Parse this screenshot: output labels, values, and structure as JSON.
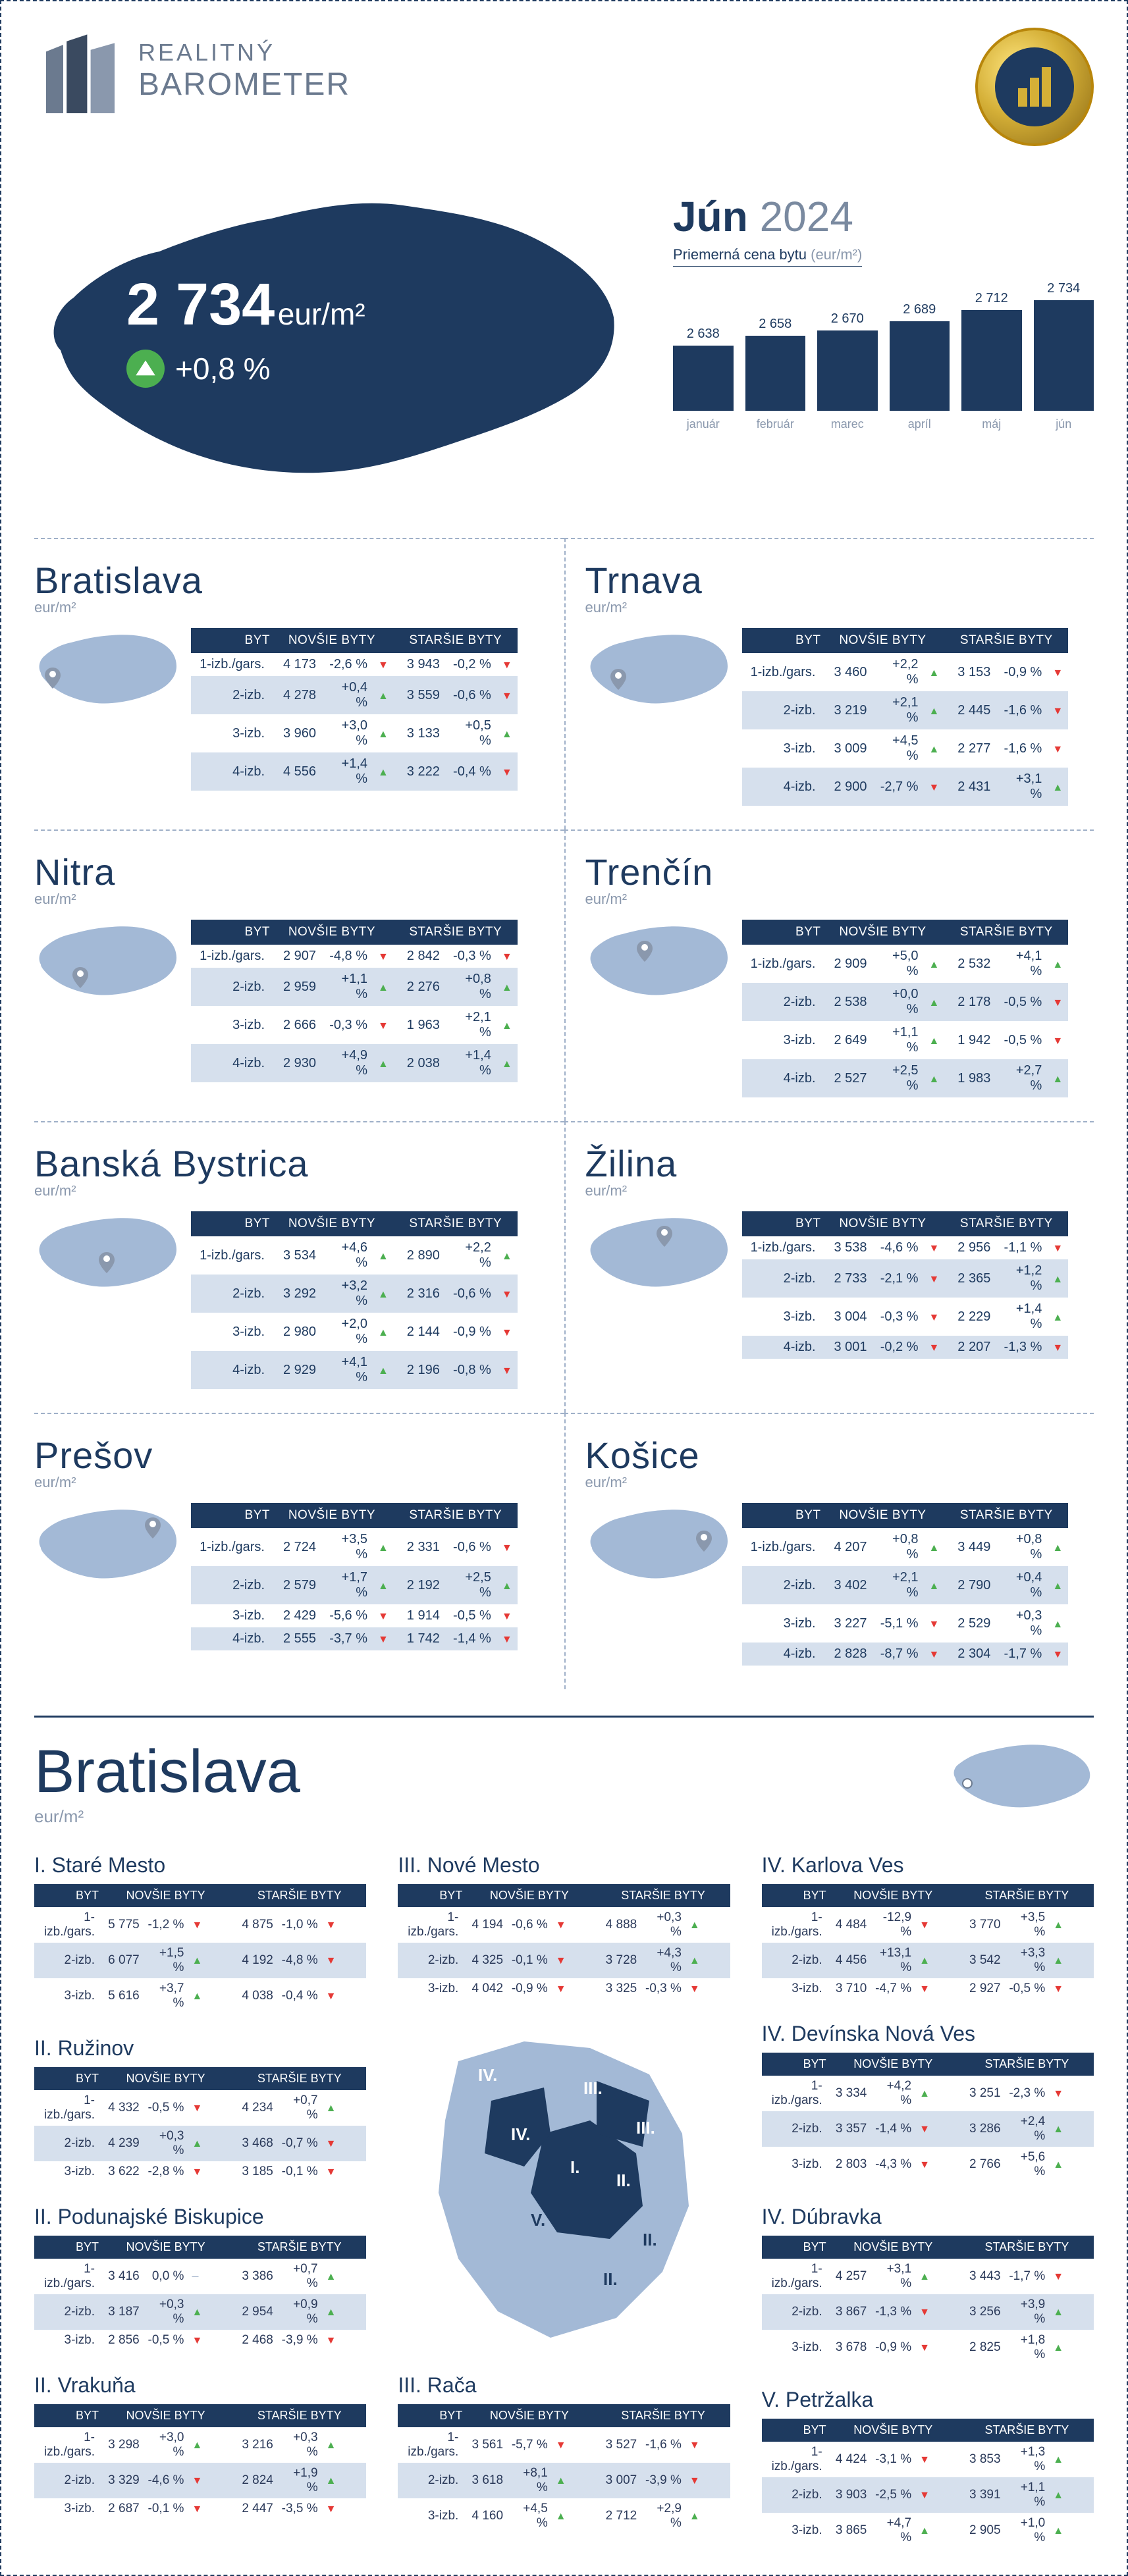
{
  "brand": {
    "line1": "REALITNÝ",
    "line2": "BAROMETER"
  },
  "period": {
    "month": "Jún",
    "year": "2024"
  },
  "avg_label": "Priemerná cena bytu",
  "avg_unit": "(eur/m²)",
  "hero": {
    "price": "2 734",
    "unit": "eur/m²",
    "delta": "+0,8 %",
    "direction": "up"
  },
  "chart": {
    "type": "bar",
    "ylim": [
      2500,
      2750
    ],
    "bars": [
      {
        "label": "január",
        "value": 2638,
        "display": "2 638"
      },
      {
        "label": "február",
        "value": 2658,
        "display": "2 658"
      },
      {
        "label": "marec",
        "value": 2670,
        "display": "2 670"
      },
      {
        "label": "apríl",
        "value": 2689,
        "display": "2 689"
      },
      {
        "label": "máj",
        "value": 2712,
        "display": "2 712"
      },
      {
        "label": "jún",
        "value": 2734,
        "display": "2 734"
      }
    ],
    "bar_color": "#1e3a5f",
    "bg_color": "#ffffff"
  },
  "table_headers": {
    "type": "BYT",
    "new": "NOVŠIE BYTY",
    "old": "STARŠIE BYTY"
  },
  "row_labels": [
    "1-izb./gars.",
    "2-izb.",
    "3-izb.",
    "4-izb."
  ],
  "row_labels_3": [
    "1-izb./gars.",
    "2-izb.",
    "3-izb."
  ],
  "unit_label": "eur/m²",
  "colors": {
    "dark": "#1e3a5f",
    "light_map": "#a3b9d6",
    "alt_row": "#d6e0ed",
    "text_muted": "#8a98ad",
    "green": "#4caf50",
    "red": "#e53935"
  },
  "regions": [
    {
      "name": "Bratislava",
      "rows": [
        {
          "n_price": "4 173",
          "n_pct": "-2,6 %",
          "n_dir": "dn",
          "o_price": "3 943",
          "o_pct": "-0,2 %",
          "o_dir": "dn"
        },
        {
          "n_price": "4 278",
          "n_pct": "+0,4 %",
          "n_dir": "up",
          "o_price": "3 559",
          "o_pct": "-0,6 %",
          "o_dir": "dn"
        },
        {
          "n_price": "3 960",
          "n_pct": "+3,0 %",
          "n_dir": "up",
          "o_price": "3 133",
          "o_pct": "+0,5 %",
          "o_dir": "up"
        },
        {
          "n_price": "4 556",
          "n_pct": "+1,4 %",
          "n_dir": "up",
          "o_price": "3 222",
          "o_pct": "-0,4 %",
          "o_dir": "dn"
        }
      ]
    },
    {
      "name": "Trnava",
      "rows": [
        {
          "n_price": "3 460",
          "n_pct": "+2,2 %",
          "n_dir": "up",
          "o_price": "3 153",
          "o_pct": "-0,9 %",
          "o_dir": "dn"
        },
        {
          "n_price": "3 219",
          "n_pct": "+2,1 %",
          "n_dir": "up",
          "o_price": "2 445",
          "o_pct": "-1,6 %",
          "o_dir": "dn"
        },
        {
          "n_price": "3 009",
          "n_pct": "+4,5 %",
          "n_dir": "up",
          "o_price": "2 277",
          "o_pct": "-1,6 %",
          "o_dir": "dn"
        },
        {
          "n_price": "2 900",
          "n_pct": "-2,7 %",
          "n_dir": "dn",
          "o_price": "2 431",
          "o_pct": "+3,1 %",
          "o_dir": "up"
        }
      ]
    },
    {
      "name": "Nitra",
      "rows": [
        {
          "n_price": "2 907",
          "n_pct": "-4,8 %",
          "n_dir": "dn",
          "o_price": "2 842",
          "o_pct": "-0,3 %",
          "o_dir": "dn"
        },
        {
          "n_price": "2 959",
          "n_pct": "+1,1 %",
          "n_dir": "up",
          "o_price": "2 276",
          "o_pct": "+0,8 %",
          "o_dir": "up"
        },
        {
          "n_price": "2 666",
          "n_pct": "-0,3 %",
          "n_dir": "dn",
          "o_price": "1 963",
          "o_pct": "+2,1 %",
          "o_dir": "up"
        },
        {
          "n_price": "2 930",
          "n_pct": "+4,9 %",
          "n_dir": "up",
          "o_price": "2 038",
          "o_pct": "+1,4 %",
          "o_dir": "up"
        }
      ]
    },
    {
      "name": "Trenčín",
      "rows": [
        {
          "n_price": "2 909",
          "n_pct": "+5,0 %",
          "n_dir": "up",
          "o_price": "2 532",
          "o_pct": "+4,1 %",
          "o_dir": "up"
        },
        {
          "n_price": "2 538",
          "n_pct": "+0,0 %",
          "n_dir": "up",
          "o_price": "2 178",
          "o_pct": "-0,5 %",
          "o_dir": "dn"
        },
        {
          "n_price": "2 649",
          "n_pct": "+1,1 %",
          "n_dir": "up",
          "o_price": "1 942",
          "o_pct": "-0,5 %",
          "o_dir": "dn"
        },
        {
          "n_price": "2 527",
          "n_pct": "+2,5 %",
          "n_dir": "up",
          "o_price": "1 983",
          "o_pct": "+2,7 %",
          "o_dir": "up"
        }
      ]
    },
    {
      "name": "Banská Bystrica",
      "rows": [
        {
          "n_price": "3 534",
          "n_pct": "+4,6 %",
          "n_dir": "up",
          "o_price": "2 890",
          "o_pct": "+2,2 %",
          "o_dir": "up"
        },
        {
          "n_price": "3 292",
          "n_pct": "+3,2 %",
          "n_dir": "up",
          "o_price": "2 316",
          "o_pct": "-0,6 %",
          "o_dir": "dn"
        },
        {
          "n_price": "2 980",
          "n_pct": "+2,0 %",
          "n_dir": "up",
          "o_price": "2 144",
          "o_pct": "-0,9 %",
          "o_dir": "dn"
        },
        {
          "n_price": "2 929",
          "n_pct": "+4,1 %",
          "n_dir": "up",
          "o_price": "2 196",
          "o_pct": "-0,8 %",
          "o_dir": "dn"
        }
      ]
    },
    {
      "name": "Žilina",
      "rows": [
        {
          "n_price": "3 538",
          "n_pct": "-4,6 %",
          "n_dir": "dn",
          "o_price": "2 956",
          "o_pct": "-1,1 %",
          "o_dir": "dn"
        },
        {
          "n_price": "2 733",
          "n_pct": "-2,1 %",
          "n_dir": "dn",
          "o_price": "2 365",
          "o_pct": "+1,2 %",
          "o_dir": "up"
        },
        {
          "n_price": "3 004",
          "n_pct": "-0,3 %",
          "n_dir": "dn",
          "o_price": "2 229",
          "o_pct": "+1,4 %",
          "o_dir": "up"
        },
        {
          "n_price": "3 001",
          "n_pct": "-0,2 %",
          "n_dir": "dn",
          "o_price": "2 207",
          "o_pct": "-1,3 %",
          "o_dir": "dn"
        }
      ]
    },
    {
      "name": "Prešov",
      "rows": [
        {
          "n_price": "2 724",
          "n_pct": "+3,5 %",
          "n_dir": "up",
          "o_price": "2 331",
          "o_pct": "-0,6 %",
          "o_dir": "dn"
        },
        {
          "n_price": "2 579",
          "n_pct": "+1,7 %",
          "n_dir": "up",
          "o_price": "2 192",
          "o_pct": "+2,5 %",
          "o_dir": "up"
        },
        {
          "n_price": "2 429",
          "n_pct": "-5,6 %",
          "n_dir": "dn",
          "o_price": "1 914",
          "o_pct": "-0,5 %",
          "o_dir": "dn"
        },
        {
          "n_price": "2 555",
          "n_pct": "-3,7 %",
          "n_dir": "dn",
          "o_price": "1 742",
          "o_pct": "-1,4 %",
          "o_dir": "dn"
        }
      ]
    },
    {
      "name": "Košice",
      "rows": [
        {
          "n_price": "4 207",
          "n_pct": "+0,8 %",
          "n_dir": "up",
          "o_price": "3 449",
          "o_pct": "+0,8 %",
          "o_dir": "up"
        },
        {
          "n_price": "3 402",
          "n_pct": "+2,1 %",
          "n_dir": "up",
          "o_price": "2 790",
          "o_pct": "+0,4 %",
          "o_dir": "up"
        },
        {
          "n_price": "3 227",
          "n_pct": "-5,1 %",
          "n_dir": "dn",
          "o_price": "2 529",
          "o_pct": "+0,3 %",
          "o_dir": "up"
        },
        {
          "n_price": "2 828",
          "n_pct": "-8,7 %",
          "n_dir": "dn",
          "o_price": "2 304",
          "o_pct": "-1,7 %",
          "o_dir": "dn"
        }
      ]
    }
  ],
  "bratislava_big": "Bratislava",
  "districts": [
    {
      "name": "I. Staré Mesto",
      "rows": [
        {
          "n_price": "5 775",
          "n_pct": "-1,2 %",
          "n_dir": "dn",
          "o_price": "4 875",
          "o_pct": "-1,0 %",
          "o_dir": "dn"
        },
        {
          "n_price": "6 077",
          "n_pct": "+1,5 %",
          "n_dir": "up",
          "o_price": "4 192",
          "o_pct": "-4,8 %",
          "o_dir": "dn"
        },
        {
          "n_price": "5 616",
          "n_pct": "+3,7 %",
          "n_dir": "up",
          "o_price": "4 038",
          "o_pct": "-0,4 %",
          "o_dir": "dn"
        }
      ]
    },
    {
      "name": "II. Ružinov",
      "rows": [
        {
          "n_price": "4 332",
          "n_pct": "-0,5 %",
          "n_dir": "dn",
          "o_price": "4 234",
          "o_pct": "+0,7 %",
          "o_dir": "up"
        },
        {
          "n_price": "4 239",
          "n_pct": "+0,3 %",
          "n_dir": "up",
          "o_price": "3 468",
          "o_pct": "-0,7 %",
          "o_dir": "dn"
        },
        {
          "n_price": "3 622",
          "n_pct": "-2,8 %",
          "n_dir": "dn",
          "o_price": "3 185",
          "o_pct": "-0,1 %",
          "o_dir": "dn"
        }
      ]
    },
    {
      "name": "II. Podunajské Biskupice",
      "rows": [
        {
          "n_price": "3 416",
          "n_pct": "0,0 %",
          "n_dir": "flat",
          "o_price": "3 386",
          "o_pct": "+0,7 %",
          "o_dir": "up"
        },
        {
          "n_price": "3 187",
          "n_pct": "+0,3 %",
          "n_dir": "up",
          "o_price": "2 954",
          "o_pct": "+0,9 %",
          "o_dir": "up"
        },
        {
          "n_price": "2 856",
          "n_pct": "-0,5 %",
          "n_dir": "dn",
          "o_price": "2 468",
          "o_pct": "-3,9 %",
          "o_dir": "dn"
        }
      ]
    },
    {
      "name": "II. Vrakuňa",
      "rows": [
        {
          "n_price": "3 298",
          "n_pct": "+3,0 %",
          "n_dir": "up",
          "o_price": "3 216",
          "o_pct": "+0,3 %",
          "o_dir": "up"
        },
        {
          "n_price": "3 329",
          "n_pct": "-4,6 %",
          "n_dir": "dn",
          "o_price": "2 824",
          "o_pct": "+1,9 %",
          "o_dir": "up"
        },
        {
          "n_price": "2 687",
          "n_pct": "-0,1 %",
          "n_dir": "dn",
          "o_price": "2 447",
          "o_pct": "-3,5 %",
          "o_dir": "dn"
        }
      ]
    },
    {
      "name": "III. Nové Mesto",
      "rows": [
        {
          "n_price": "4 194",
          "n_pct": "-0,6 %",
          "n_dir": "dn",
          "o_price": "4 888",
          "o_pct": "+0,3 %",
          "o_dir": "up"
        },
        {
          "n_price": "4 325",
          "n_pct": "-0,1 %",
          "n_dir": "dn",
          "o_price": "3 728",
          "o_pct": "+4,3 %",
          "o_dir": "up"
        },
        {
          "n_price": "4 042",
          "n_pct": "-0,9 %",
          "n_dir": "dn",
          "o_price": "3 325",
          "o_pct": "-0,3 %",
          "o_dir": "dn"
        }
      ]
    },
    {
      "name": "III. Rača",
      "rows": [
        {
          "n_price": "3 561",
          "n_pct": "-5,7 %",
          "n_dir": "dn",
          "o_price": "3 527",
          "o_pct": "-1,6 %",
          "o_dir": "dn"
        },
        {
          "n_price": "3 618",
          "n_pct": "+8,1 %",
          "n_dir": "up",
          "o_price": "3 007",
          "o_pct": "-3,9 %",
          "o_dir": "dn"
        },
        {
          "n_price": "4 160",
          "n_pct": "+4,5 %",
          "n_dir": "up",
          "o_price": "2 712",
          "o_pct": "+2,9 %",
          "o_dir": "up"
        }
      ]
    },
    {
      "name": "IV. Karlova Ves",
      "rows": [
        {
          "n_price": "4 484",
          "n_pct": "-12,9 %",
          "n_dir": "dn",
          "o_price": "3 770",
          "o_pct": "+3,5 %",
          "o_dir": "up"
        },
        {
          "n_price": "4 456",
          "n_pct": "+13,1 %",
          "n_dir": "up",
          "o_price": "3 542",
          "o_pct": "+3,3 %",
          "o_dir": "up"
        },
        {
          "n_price": "3 710",
          "n_pct": "-4,7 %",
          "n_dir": "dn",
          "o_price": "2 927",
          "o_pct": "-0,5 %",
          "o_dir": "dn"
        }
      ]
    },
    {
      "name": "IV. Devínska Nová Ves",
      "rows": [
        {
          "n_price": "3 334",
          "n_pct": "+4,2 %",
          "n_dir": "up",
          "o_price": "3 251",
          "o_pct": "-2,3 %",
          "o_dir": "dn"
        },
        {
          "n_price": "3 357",
          "n_pct": "-1,4 %",
          "n_dir": "dn",
          "o_price": "3 286",
          "o_pct": "+2,4 %",
          "o_dir": "up"
        },
        {
          "n_price": "2 803",
          "n_pct": "-4,3 %",
          "n_dir": "dn",
          "o_price": "2 766",
          "o_pct": "+5,6 %",
          "o_dir": "up"
        }
      ]
    },
    {
      "name": "IV. Dúbravka",
      "rows": [
        {
          "n_price": "4 257",
          "n_pct": "+3,1 %",
          "n_dir": "up",
          "o_price": "3 443",
          "o_pct": "-1,7 %",
          "o_dir": "dn"
        },
        {
          "n_price": "3 867",
          "n_pct": "-1,3 %",
          "n_dir": "dn",
          "o_price": "3 256",
          "o_pct": "+3,9 %",
          "o_dir": "up"
        },
        {
          "n_price": "3 678",
          "n_pct": "-0,9 %",
          "n_dir": "dn",
          "o_price": "2 825",
          "o_pct": "+1,8 %",
          "o_dir": "up"
        }
      ]
    },
    {
      "name": "V. Petržalka",
      "rows": [
        {
          "n_price": "4 424",
          "n_pct": "-3,1 %",
          "n_dir": "dn",
          "o_price": "3 853",
          "o_pct": "+1,3 %",
          "o_dir": "up"
        },
        {
          "n_price": "3 903",
          "n_pct": "-2,5 %",
          "n_dir": "dn",
          "o_price": "3 391",
          "o_pct": "+1,1 %",
          "o_dir": "up"
        },
        {
          "n_price": "3 865",
          "n_pct": "+4,7 %",
          "n_dir": "up",
          "o_price": "2 905",
          "o_pct": "+1,0 %",
          "o_dir": "up"
        }
      ]
    }
  ]
}
